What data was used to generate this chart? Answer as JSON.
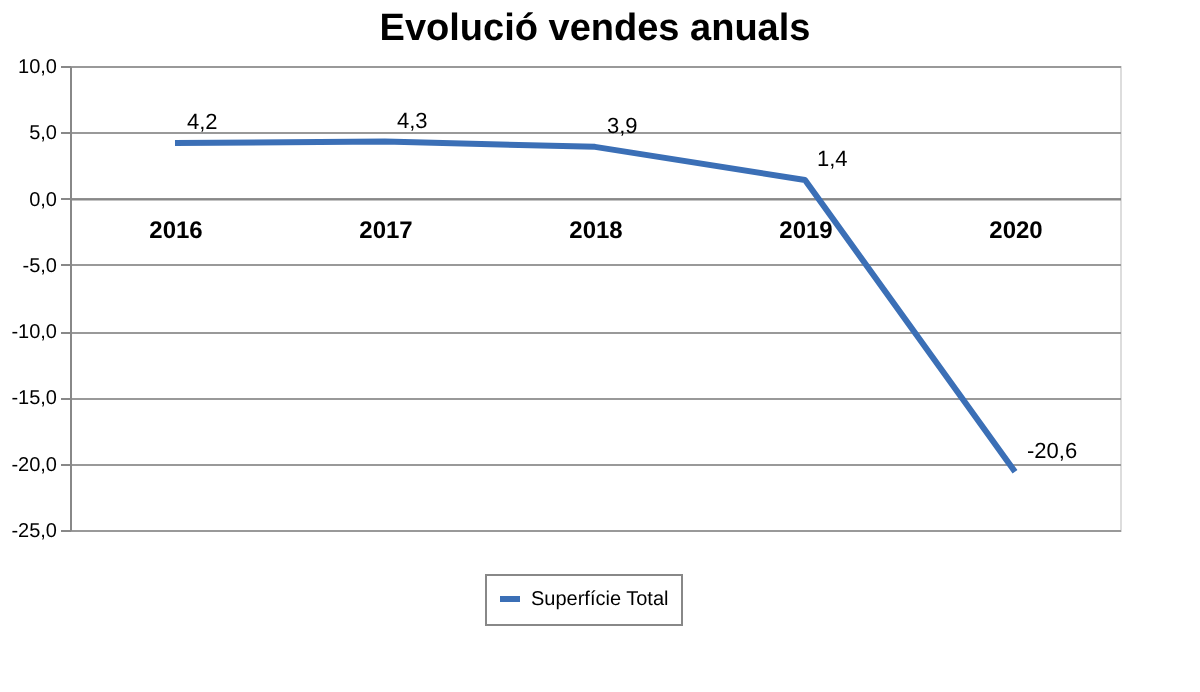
{
  "chart_data": {
    "type": "line",
    "title": "Evolució vendes anuals",
    "categories": [
      "2016",
      "2017",
      "2018",
      "2019",
      "2020"
    ],
    "series": [
      {
        "name": "Superfície Total",
        "color": "#3b6fb6",
        "values": [
          4.2,
          4.3,
          3.9,
          1.4,
          -20.6
        ],
        "value_labels": [
          "4,2",
          "4,3",
          "3,9",
          "1,4",
          "-20,6"
        ]
      }
    ],
    "ylim": [
      -25,
      10
    ],
    "yticks": [
      {
        "value": 10,
        "label": "10,0"
      },
      {
        "value": 5,
        "label": "5,0"
      },
      {
        "value": 0,
        "label": "0,0"
      },
      {
        "value": -5,
        "label": "-5,0"
      },
      {
        "value": -10,
        "label": "-10,0"
      },
      {
        "value": -15,
        "label": "-15,0"
      },
      {
        "value": -20,
        "label": "-20,0"
      },
      {
        "value": -25,
        "label": "-25,0"
      }
    ],
    "grid": "y",
    "legend": "bottom",
    "marker": "none",
    "line_style": "solid"
  }
}
